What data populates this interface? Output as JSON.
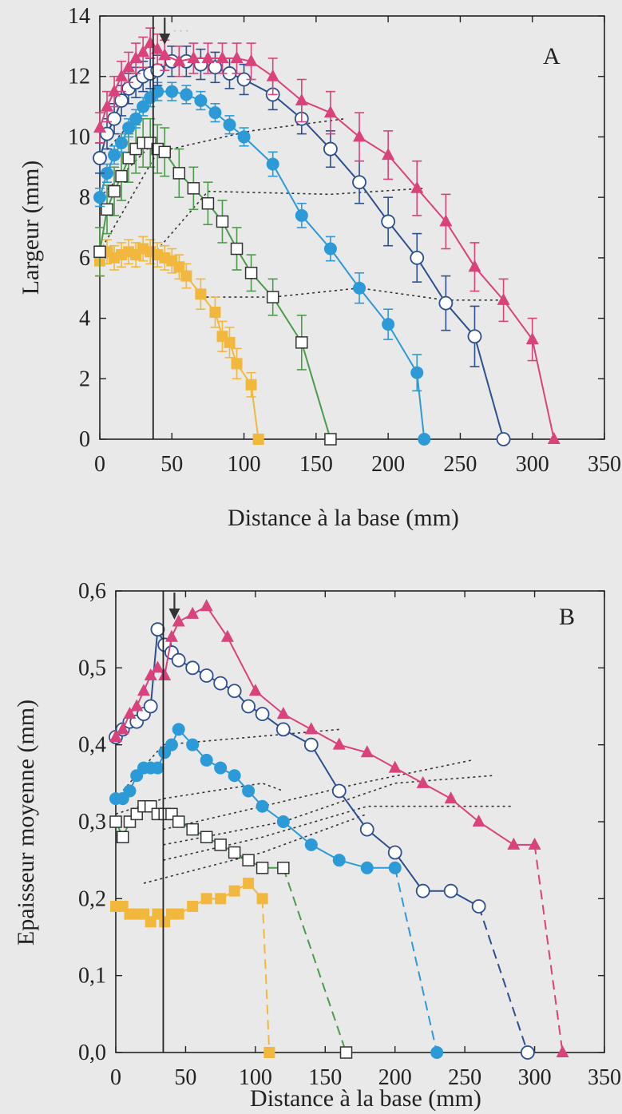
{
  "chart_data": [
    {
      "type": "line",
      "panel_label": "A",
      "xlabel": "Distance à la base (mm)",
      "ylabel": "Largeur (mm)",
      "xlim": [
        0,
        350
      ],
      "ylim": [
        0,
        14
      ],
      "xticks": [
        0,
        50,
        100,
        150,
        200,
        250,
        300,
        350
      ],
      "yticks": [
        0,
        2,
        4,
        6,
        8,
        10,
        12,
        14
      ],
      "ytick_labels": [
        "0",
        "2",
        "4",
        "6",
        "8",
        "10",
        "12",
        "14"
      ],
      "grid": false,
      "vertical_line_x": 37,
      "arrow_x": 45,
      "series": [
        {
          "marker": "square-filled",
          "color": "#f2b83e",
          "x": [
            0,
            5,
            10,
            15,
            20,
            25,
            30,
            35,
            40,
            45,
            50,
            55,
            60,
            70,
            80,
            85,
            90,
            95,
            105,
            110
          ],
          "y": [
            5.9,
            6.2,
            6.0,
            6.1,
            6.2,
            6.1,
            6.3,
            6.2,
            6.1,
            6.0,
            5.9,
            5.7,
            5.4,
            4.8,
            4.2,
            3.4,
            3.2,
            2.5,
            1.8,
            0
          ],
          "err": [
            0.5,
            0.4,
            0.4,
            0.4,
            0.4,
            0.4,
            0.4,
            0.4,
            0.4,
            0.4,
            0.4,
            0.4,
            0.4,
            0.5,
            0.5,
            0.5,
            0.5,
            0.5,
            0.4,
            0
          ]
        },
        {
          "marker": "square-open",
          "color": "#4c9a4c",
          "x": [
            0,
            5,
            10,
            15,
            20,
            25,
            30,
            35,
            40,
            45,
            55,
            65,
            75,
            85,
            95,
            105,
            120,
            140,
            160
          ],
          "y": [
            6.2,
            7.6,
            8.2,
            8.7,
            9.3,
            9.6,
            9.8,
            9.8,
            9.6,
            9.5,
            8.8,
            8.3,
            7.8,
            7.2,
            6.3,
            5.5,
            4.7,
            3.2,
            0
          ],
          "err": [
            0.8,
            0.8,
            0.8,
            0.8,
            0.8,
            0.8,
            0.8,
            0.8,
            0.8,
            0.8,
            0.8,
            0.7,
            0.7,
            0.7,
            0.7,
            0.6,
            0.6,
            0.9,
            0
          ]
        },
        {
          "marker": "circle-filled",
          "color": "#2b9ad6",
          "x": [
            0,
            5,
            10,
            15,
            20,
            25,
            30,
            35,
            40,
            50,
            60,
            70,
            80,
            90,
            100,
            120,
            140,
            160,
            180,
            200,
            220,
            225
          ],
          "y": [
            8.0,
            8.8,
            9.4,
            9.8,
            10.3,
            10.6,
            11.0,
            11.3,
            11.5,
            11.5,
            11.4,
            11.2,
            10.8,
            10.4,
            10.0,
            9.1,
            7.4,
            6.3,
            5.0,
            3.8,
            2.2,
            0
          ],
          "err": [
            0.3,
            0.3,
            0.3,
            0.3,
            0.3,
            0.3,
            0.3,
            0.3,
            0.3,
            0.3,
            0.3,
            0.3,
            0.3,
            0.3,
            0.3,
            0.4,
            0.4,
            0.4,
            0.5,
            0.5,
            0.6,
            0
          ]
        },
        {
          "marker": "circle-open",
          "color": "#2d4f8e",
          "x": [
            0,
            5,
            10,
            15,
            20,
            25,
            30,
            35,
            40,
            50,
            60,
            70,
            80,
            90,
            100,
            120,
            140,
            160,
            180,
            200,
            220,
            240,
            260,
            280
          ],
          "y": [
            9.3,
            10.1,
            10.6,
            11.2,
            11.6,
            11.8,
            12.0,
            12.1,
            12.2,
            12.5,
            12.5,
            12.4,
            12.3,
            12.1,
            11.9,
            11.4,
            10.6,
            9.6,
            8.5,
            7.2,
            6.0,
            4.5,
            3.4,
            0
          ],
          "err": [
            0.5,
            0.5,
            0.5,
            0.5,
            0.5,
            0.5,
            0.5,
            0.5,
            0.5,
            0.5,
            0.5,
            0.5,
            0.5,
            0.5,
            0.5,
            0.5,
            0.5,
            0.6,
            0.7,
            0.8,
            0.8,
            0.9,
            1.0,
            0
          ]
        },
        {
          "marker": "triangle-filled",
          "color": "#d9427a",
          "x": [
            0,
            5,
            10,
            15,
            20,
            25,
            30,
            35,
            40,
            45,
            55,
            65,
            75,
            85,
            95,
            105,
            120,
            140,
            160,
            180,
            200,
            220,
            240,
            260,
            280,
            300,
            315
          ],
          "y": [
            10.3,
            11.0,
            11.5,
            12.0,
            12.3,
            12.6,
            12.8,
            13.1,
            12.9,
            12.7,
            12.5,
            12.6,
            12.6,
            12.6,
            12.6,
            12.5,
            12.0,
            11.2,
            10.8,
            10.0,
            9.4,
            8.3,
            7.2,
            5.7,
            4.6,
            3.3,
            0
          ],
          "err": [
            0.5,
            0.5,
            0.5,
            0.5,
            0.5,
            0.5,
            0.5,
            0.5,
            0.5,
            0.5,
            0.5,
            0.5,
            0.5,
            0.5,
            0.5,
            0.6,
            0.6,
            0.7,
            0.7,
            0.8,
            0.8,
            0.9,
            0.9,
            0.8,
            0.7,
            0.7,
            0
          ]
        }
      ],
      "dotted_connectors": [
        {
          "points": [
            [
              0,
              6.2
            ],
            [
              40,
              9.5
            ],
            [
              105,
              10.2
            ],
            [
              170,
              10.6
            ]
          ]
        },
        {
          "points": [
            [
              37,
              6.1
            ],
            [
              75,
              8.2
            ],
            [
              160,
              8.1
            ],
            [
              225,
              8.3
            ]
          ]
        },
        {
          "points": [
            [
              70,
              4.7
            ],
            [
              120,
              4.7
            ],
            [
              180,
              5.0
            ],
            [
              240,
              4.6
            ],
            [
              280,
              4.6
            ]
          ]
        },
        {
          "points": [
            [
              0,
              8.0
            ],
            [
              37,
              9.8
            ]
          ]
        },
        {
          "points": [
            [
              0,
              9.3
            ],
            [
              37,
              11.3
            ]
          ]
        }
      ]
    },
    {
      "type": "line",
      "panel_label": "B",
      "xlabel": "Distance à la base (mm)",
      "ylabel": "Epaisseur moyenne (mm)",
      "xlim": [
        0,
        350
      ],
      "ylim": [
        0,
        0.6
      ],
      "xticks": [
        0,
        50,
        100,
        150,
        200,
        250,
        300,
        350
      ],
      "yticks": [
        0,
        0.1,
        0.2,
        0.3,
        0.4,
        0.5,
        0.6
      ],
      "ytick_labels": [
        "0,0",
        "0,1",
        "0,2",
        "0,3",
        "0,4",
        "0,5",
        "0,6"
      ],
      "grid": false,
      "vertical_line_x": 34,
      "arrow_x": 42,
      "series": [
        {
          "marker": "square-filled",
          "color": "#f2b83e",
          "x": [
            0,
            5,
            10,
            15,
            20,
            25,
            30,
            35,
            40,
            45,
            55,
            65,
            75,
            85,
            95,
            105,
            110
          ],
          "y": [
            0.19,
            0.19,
            0.18,
            0.18,
            0.18,
            0.17,
            0.18,
            0.17,
            0.18,
            0.18,
            0.19,
            0.2,
            0.2,
            0.21,
            0.22,
            0.2,
            0
          ],
          "dashed_from": 105
        },
        {
          "marker": "square-open",
          "color": "#4c9a4c",
          "x": [
            0,
            5,
            10,
            15,
            20,
            25,
            30,
            35,
            40,
            45,
            55,
            65,
            75,
            85,
            95,
            105,
            120,
            165
          ],
          "y": [
            0.3,
            0.28,
            0.3,
            0.31,
            0.32,
            0.32,
            0.31,
            0.31,
            0.31,
            0.3,
            0.29,
            0.28,
            0.27,
            0.26,
            0.25,
            0.24,
            0.24,
            0
          ],
          "dashed_from": 120
        },
        {
          "marker": "circle-filled",
          "color": "#2b9ad6",
          "x": [
            0,
            5,
            10,
            15,
            20,
            25,
            30,
            35,
            40,
            45,
            55,
            65,
            75,
            85,
            95,
            105,
            120,
            140,
            160,
            180,
            200,
            230
          ],
          "y": [
            0.33,
            0.33,
            0.34,
            0.36,
            0.37,
            0.37,
            0.37,
            0.39,
            0.4,
            0.42,
            0.4,
            0.38,
            0.37,
            0.36,
            0.34,
            0.32,
            0.3,
            0.27,
            0.25,
            0.24,
            0.24,
            0
          ],
          "dashed_from": 200
        },
        {
          "marker": "circle-open",
          "color": "#2d4f8e",
          "x": [
            0,
            5,
            10,
            15,
            20,
            25,
            30,
            35,
            40,
            45,
            55,
            65,
            75,
            85,
            95,
            105,
            120,
            140,
            160,
            180,
            200,
            220,
            240,
            260,
            295
          ],
          "y": [
            0.41,
            0.42,
            0.43,
            0.43,
            0.44,
            0.45,
            0.55,
            0.53,
            0.52,
            0.51,
            0.5,
            0.49,
            0.48,
            0.47,
            0.45,
            0.44,
            0.42,
            0.4,
            0.34,
            0.29,
            0.26,
            0.21,
            0.21,
            0.19,
            0
          ],
          "dashed_from": 260
        },
        {
          "marker": "triangle-filled",
          "color": "#d9427a",
          "x": [
            0,
            5,
            10,
            15,
            20,
            25,
            30,
            35,
            40,
            45,
            55,
            65,
            80,
            100,
            120,
            140,
            160,
            180,
            200,
            220,
            240,
            260,
            285,
            300,
            320
          ],
          "y": [
            0.41,
            0.42,
            0.44,
            0.45,
            0.47,
            0.49,
            0.5,
            0.49,
            0.54,
            0.56,
            0.57,
            0.58,
            0.54,
            0.47,
            0.44,
            0.42,
            0.4,
            0.39,
            0.37,
            0.35,
            0.33,
            0.3,
            0.27,
            0.27,
            0
          ],
          "dashed_from": 300
        }
      ],
      "dotted_connectors": [
        {
          "points": [
            [
              0,
              0.31
            ],
            [
              34,
              0.33
            ],
            [
              105,
              0.35
            ],
            [
              120,
              0.34
            ]
          ]
        },
        {
          "points": [
            [
              0,
              0.33
            ],
            [
              34,
              0.4
            ],
            [
              160,
              0.42
            ]
          ]
        },
        {
          "points": [
            [
              34,
              0.29
            ],
            [
              105,
              0.32
            ],
            [
              175,
              0.35
            ],
            [
              255,
              0.38
            ]
          ]
        },
        {
          "points": [
            [
              34,
              0.27
            ],
            [
              120,
              0.3
            ],
            [
              200,
              0.35
            ],
            [
              270,
              0.36
            ]
          ]
        },
        {
          "points": [
            [
              34,
              0.25
            ],
            [
              105,
              0.28
            ],
            [
              180,
              0.32
            ],
            [
              285,
              0.32
            ]
          ]
        },
        {
          "points": [
            [
              20,
              0.22
            ],
            [
              105,
              0.26
            ],
            [
              180,
              0.31
            ]
          ]
        }
      ]
    }
  ]
}
